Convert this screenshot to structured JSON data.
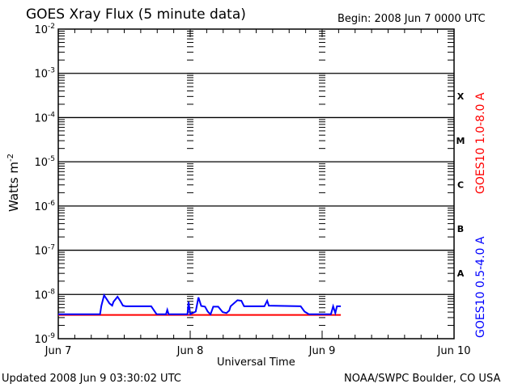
{
  "chart_data": {
    "type": "line",
    "title": "GOES Xray Flux (5 minute data)",
    "begin_label": "Begin:  2008 Jun 7 0000 UTC",
    "xlabel": "Universal Time",
    "ylabel": "Watts m",
    "ylabel_superscript": "-2",
    "x_unit": "hours since 2008 Jun 7 0000 UTC",
    "xlim": [
      0,
      72
    ],
    "x_ticks": [
      {
        "value": 0,
        "label": "Jun 7"
      },
      {
        "value": 24,
        "label": "Jun 8"
      },
      {
        "value": 48,
        "label": "Jun 9"
      },
      {
        "value": 72,
        "label": "Jun 10"
      }
    ],
    "yscale": "log",
    "ylim": [
      1e-09,
      0.01
    ],
    "y_ticks": [
      {
        "exp": -2,
        "base": "10",
        "sup": "-2"
      },
      {
        "exp": -3,
        "base": "10",
        "sup": "-3"
      },
      {
        "exp": -4,
        "base": "10",
        "sup": "-4"
      },
      {
        "exp": -5,
        "base": "10",
        "sup": "-5"
      },
      {
        "exp": -6,
        "base": "10",
        "sup": "-6"
      },
      {
        "exp": -7,
        "base": "10",
        "sup": "-7"
      },
      {
        "exp": -8,
        "base": "10",
        "sup": "-8"
      },
      {
        "exp": -9,
        "base": "10",
        "sup": "-9"
      }
    ],
    "flare_classes": [
      {
        "label": "X",
        "exp": -4
      },
      {
        "label": "M",
        "exp": -5
      },
      {
        "label": "C",
        "exp": -6
      },
      {
        "label": "B",
        "exp": -7
      },
      {
        "label": "A",
        "exp": -8
      }
    ],
    "grid": "horizontal lines at each decade 1e-8 to 1e-3",
    "series": [
      {
        "name": "GOES10 1.0-8.0 A",
        "color": "#ff0000",
        "x": [
          0,
          51.4
        ],
        "y": [
          3.45e-09,
          3.45e-09
        ]
      },
      {
        "name": "GOES10 0.5-4.0 A",
        "color": "#0000ff",
        "x": [
          0,
          7.6,
          7.84,
          8.33,
          8.82,
          9.31,
          9.8,
          10.04,
          10.78,
          11.27,
          11.76,
          12.25,
          16.9,
          17.88,
          19.6,
          19.84,
          20.09,
          23.5,
          23.7,
          24.0,
          25.0,
          25.5,
          26.0,
          26.7,
          27.2,
          27.7,
          28.2,
          29.1,
          29.9,
          30.6,
          31.1,
          31.35,
          32.6,
          33.3,
          33.8,
          37.5,
          38.0,
          38.3,
          44.1,
          44.8,
          45.6,
          49.6,
          50.0,
          50.4,
          50.7,
          51.4
        ],
        "y": [
          3.56e-09,
          3.56e-09,
          5.5e-09,
          9.6e-09,
          7.8e-09,
          6.3e-09,
          5.6e-09,
          6.8e-09,
          8.9e-09,
          7.2e-09,
          5.6e-09,
          5.4e-09,
          5.4e-09,
          3.6e-09,
          3.56e-09,
          4.5e-09,
          3.56e-09,
          3.56e-09,
          6.8e-09,
          3.56e-09,
          4.1e-09,
          8.6e-09,
          5.5e-09,
          5.3e-09,
          4.1e-09,
          3.56e-09,
          5.3e-09,
          5.3e-09,
          4e-09,
          3.8e-09,
          4.3e-09,
          5.4e-09,
          7.4e-09,
          7.2e-09,
          5.4e-09,
          5.4e-09,
          7.2e-09,
          5.6e-09,
          5.4e-09,
          4.1e-09,
          3.56e-09,
          3.56e-09,
          5.4e-09,
          3.8e-09,
          5.4e-09,
          5.4e-09
        ]
      }
    ]
  },
  "footer": {
    "updated": "Updated 2008 Jun  9 03:30:02 UTC",
    "credit": "NOAA/SWPC Boulder, CO USA"
  }
}
